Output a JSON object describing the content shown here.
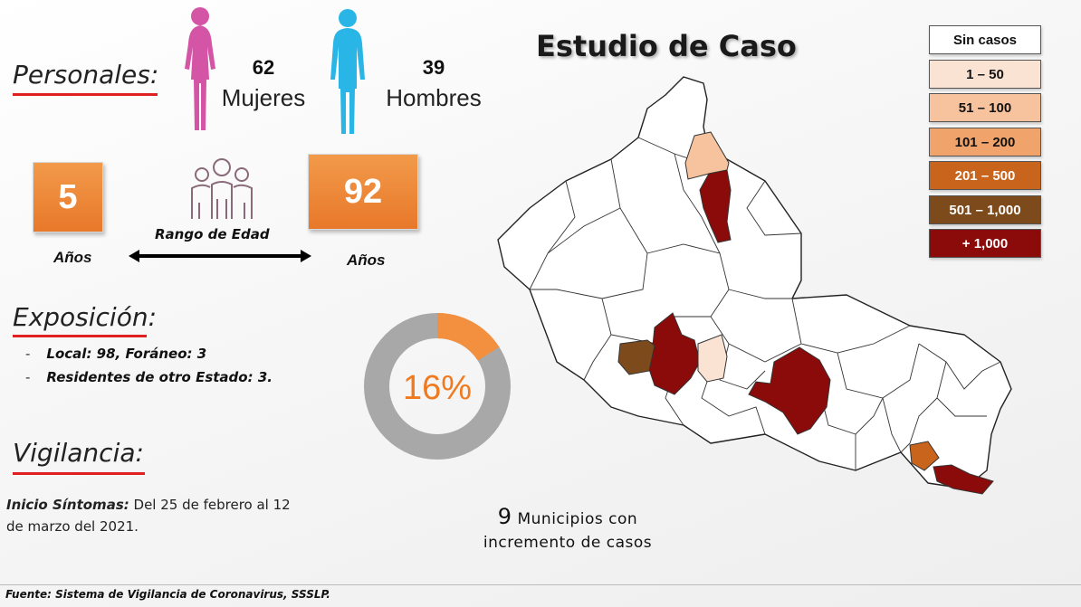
{
  "personales": {
    "title": "Personales:",
    "women_count": "62",
    "women_label": "Mujeres",
    "men_count": "39",
    "men_label": "Hombres",
    "colors": {
      "women": "#d455a6",
      "men": "#29b6e6"
    }
  },
  "age_range": {
    "min": "5",
    "max": "92",
    "min_unit": "Años",
    "max_unit": "Años",
    "label": "Rango de Edad"
  },
  "exposicion": {
    "title": "Exposición:",
    "items": [
      "Local:  98, Foráneo: 3",
      "Residentes de otro Estado: 3."
    ]
  },
  "donut": {
    "value_text": "16%",
    "fraction": 0.16,
    "color_fill": "#f39040",
    "color_track": "#a8a8a8"
  },
  "vigilancia": {
    "title": "Vigilancia:",
    "label": "Inicio Síntomas:",
    "text_line1": " Del 25 de febrero al 12",
    "text_line2": "de marzo del 2021."
  },
  "study": {
    "title": "Estudio de Caso"
  },
  "municipios": {
    "count": "9",
    "line1": "Municipios con",
    "line2": "incremento de casos"
  },
  "legend": [
    {
      "label": "Sin casos",
      "color": "#ffffff",
      "text_color": "#111111"
    },
    {
      "label": "1 – 50",
      "color": "#fbe3d3",
      "text_color": "#111111"
    },
    {
      "label": "51 – 100",
      "color": "#f6c39e",
      "text_color": "#111111"
    },
    {
      "label": "101 – 200",
      "color": "#f0a46c",
      "text_color": "#111111"
    },
    {
      "label": "201 – 500",
      "color": "#c8641c",
      "text_color": "#ffffff"
    },
    {
      "label": "501 – 1,000",
      "color": "#7d4a1c",
      "text_color": "#ffffff"
    },
    {
      "label": "+ 1,000",
      "color": "#8b0a0a",
      "text_color": "#ffffff"
    }
  ],
  "footer": {
    "source": "Fuente: Sistema de Vigilancia de Coronavirus, SSSLP."
  }
}
